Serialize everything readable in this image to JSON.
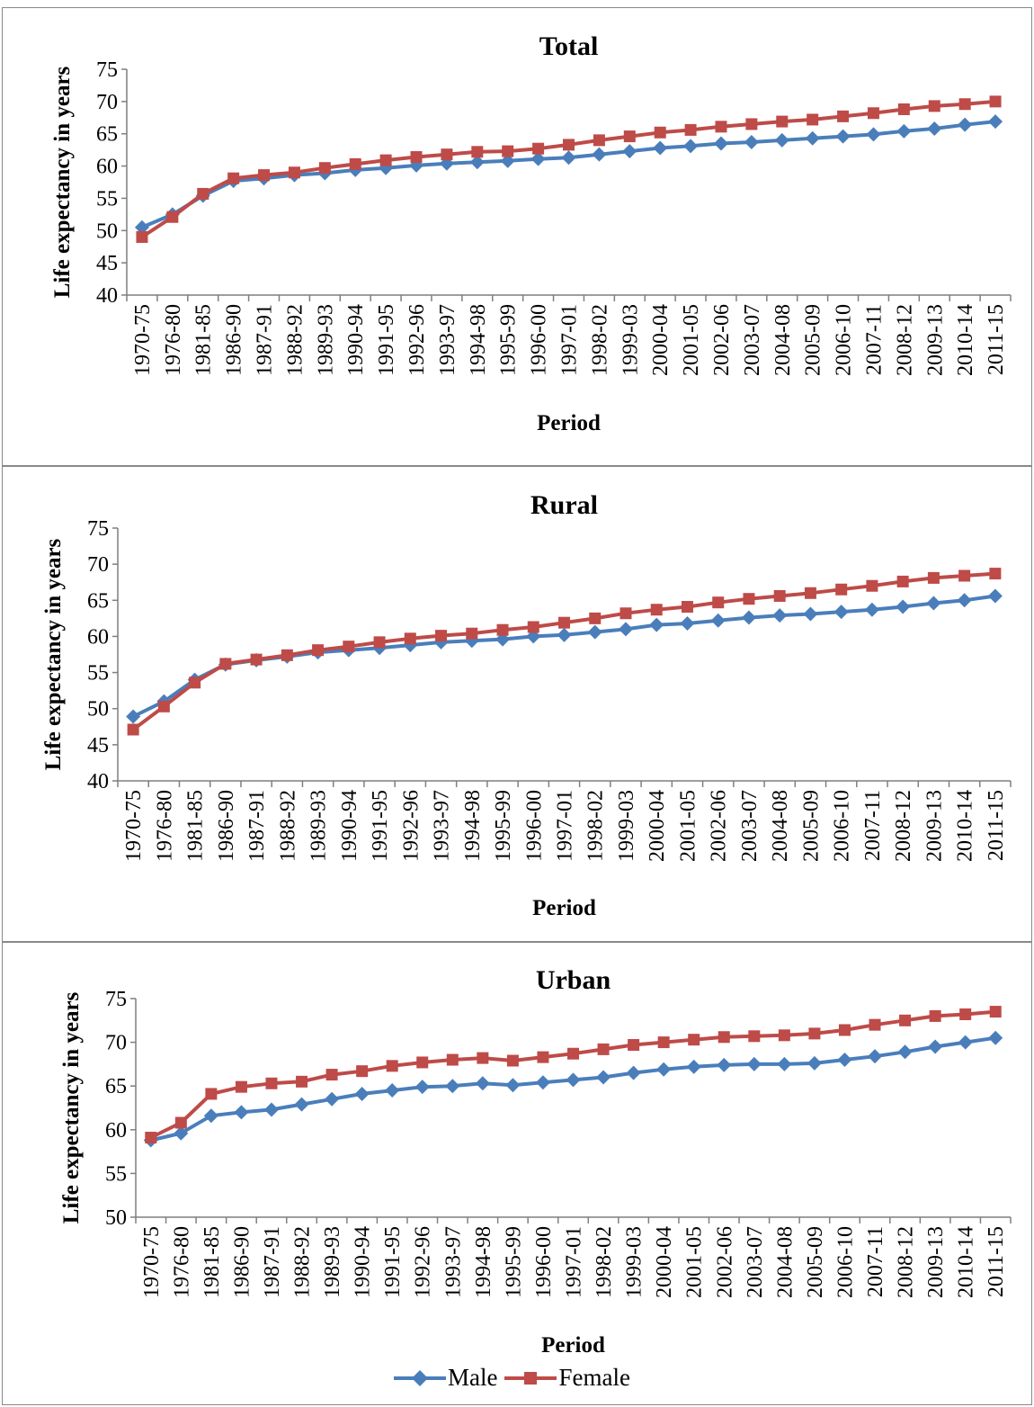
{
  "colors": {
    "male": "#4a7ebb",
    "female": "#be4b48",
    "axis": "#7f7f7f"
  },
  "legend": {
    "male": "Male",
    "female": "Female"
  },
  "chart_data": [
    {
      "type": "line",
      "title": "Total",
      "xlabel": "Period",
      "ylabel": "Life expectancy in years",
      "ylim": [
        40,
        75
      ],
      "yticks": [
        40,
        45,
        50,
        55,
        60,
        65,
        70,
        75
      ],
      "categories": [
        "1970-75",
        "1976-80",
        "1981-85",
        "1986-90",
        "1987-91",
        "1988-92",
        "1989-93",
        "1990-94",
        "1991-95",
        "1992-96",
        "1993-97",
        "1994-98",
        "1995-99",
        "1996-00",
        "1997-01",
        "1998-02",
        "1999-03",
        "2000-04",
        "2001-05",
        "2002-06",
        "2003-07",
        "2004-08",
        "2005-09",
        "2006-10",
        "2007-11",
        "2008-12",
        "2009-13",
        "2010-14",
        "2011-15"
      ],
      "series": [
        {
          "name": "Male",
          "values": [
            50.5,
            52.5,
            55.4,
            57.7,
            58.1,
            58.6,
            58.9,
            59.4,
            59.7,
            60.1,
            60.4,
            60.6,
            60.8,
            61.1,
            61.3,
            61.8,
            62.3,
            62.8,
            63.1,
            63.5,
            63.7,
            64.0,
            64.3,
            64.6,
            64.9,
            65.4,
            65.8,
            66.4,
            66.9
          ]
        },
        {
          "name": "Female",
          "values": [
            49.0,
            52.1,
            55.7,
            58.1,
            58.6,
            59.0,
            59.7,
            60.3,
            60.9,
            61.4,
            61.8,
            62.2,
            62.3,
            62.7,
            63.3,
            64.0,
            64.6,
            65.2,
            65.6,
            66.1,
            66.5,
            66.9,
            67.2,
            67.7,
            68.2,
            68.8,
            69.3,
            69.6,
            70.0
          ]
        }
      ]
    },
    {
      "type": "line",
      "title": "Rural",
      "xlabel": "Period",
      "ylabel": "Life expectancy in years",
      "ylim": [
        40,
        75
      ],
      "yticks": [
        40,
        45,
        50,
        55,
        60,
        65,
        70,
        75
      ],
      "categories": [
        "1970-75",
        "1976-80",
        "1981-85",
        "1986-90",
        "1987-91",
        "1988-92",
        "1989-93",
        "1990-94",
        "1991-95",
        "1992-96",
        "1993-97",
        "1994-98",
        "1995-99",
        "1996-00",
        "1997-01",
        "1998-02",
        "1999-03",
        "2000-04",
        "2001-05",
        "2002-06",
        "2003-07",
        "2004-08",
        "2005-09",
        "2006-10",
        "2007-11",
        "2008-12",
        "2009-13",
        "2010-14",
        "2011-15"
      ],
      "series": [
        {
          "name": "Male",
          "values": [
            48.9,
            51.0,
            54.0,
            56.1,
            56.7,
            57.2,
            57.8,
            58.1,
            58.4,
            58.8,
            59.2,
            59.4,
            59.6,
            60.0,
            60.2,
            60.6,
            61.0,
            61.6,
            61.8,
            62.2,
            62.6,
            62.9,
            63.1,
            63.4,
            63.7,
            64.1,
            64.6,
            65.0,
            65.6
          ]
        },
        {
          "name": "Female",
          "values": [
            47.1,
            50.3,
            53.6,
            56.2,
            56.8,
            57.4,
            58.1,
            58.6,
            59.2,
            59.7,
            60.1,
            60.4,
            60.9,
            61.3,
            61.9,
            62.5,
            63.2,
            63.7,
            64.1,
            64.7,
            65.2,
            65.6,
            66.0,
            66.5,
            67.0,
            67.6,
            68.1,
            68.4,
            68.7
          ]
        }
      ]
    },
    {
      "type": "line",
      "title": "Urban",
      "xlabel": "Period",
      "ylabel": "Life expectancy in years",
      "ylim": [
        50,
        75
      ],
      "yticks": [
        50,
        55,
        60,
        65,
        70,
        75
      ],
      "categories": [
        "1970-75",
        "1976-80",
        "1981-85",
        "1986-90",
        "1987-91",
        "1988-92",
        "1989-93",
        "1990-94",
        "1991-95",
        "1992-96",
        "1993-97",
        "1994-98",
        "1995-99",
        "1996-00",
        "1997-01",
        "1998-02",
        "1999-03",
        "2000-04",
        "2001-05",
        "2002-06",
        "2003-07",
        "2004-08",
        "2005-09",
        "2006-10",
        "2007-11",
        "2008-12",
        "2009-13",
        "2010-14",
        "2011-15"
      ],
      "series": [
        {
          "name": "Male",
          "values": [
            58.8,
            59.6,
            61.6,
            62.0,
            62.3,
            62.9,
            63.5,
            64.1,
            64.5,
            64.9,
            65.0,
            65.3,
            65.1,
            65.4,
            65.7,
            66.0,
            66.5,
            66.9,
            67.2,
            67.4,
            67.5,
            67.5,
            67.6,
            68.0,
            68.4,
            68.9,
            69.5,
            70.0,
            70.5
          ]
        },
        {
          "name": "Female",
          "values": [
            59.1,
            60.8,
            64.1,
            64.9,
            65.3,
            65.5,
            66.3,
            66.7,
            67.3,
            67.7,
            68.0,
            68.2,
            67.9,
            68.3,
            68.7,
            69.2,
            69.7,
            70.0,
            70.3,
            70.6,
            70.7,
            70.8,
            71.0,
            71.4,
            72.0,
            72.5,
            73.0,
            73.2,
            73.5
          ]
        }
      ]
    }
  ]
}
